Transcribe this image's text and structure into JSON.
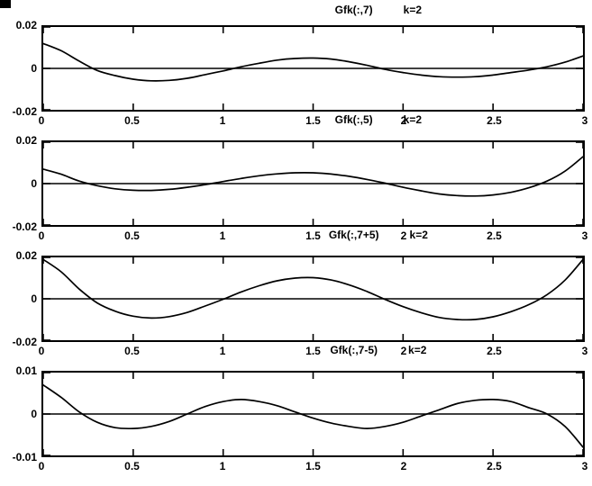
{
  "figure": {
    "background": "#ffffff",
    "line_color": "#000000",
    "text_color": "#000000"
  },
  "chart_data": [
    {
      "type": "line",
      "title": "Gfk(:,7)",
      "annotation": "k=2",
      "xlim": [
        0,
        3
      ],
      "ylim": [
        -0.02,
        0.02
      ],
      "grid": false,
      "legend": null,
      "zero_line": true,
      "xticks": [
        0,
        0.5,
        1,
        1.5,
        2,
        2.5,
        3
      ],
      "xtick_labels": [
        "0",
        "0.5",
        "1",
        "1.5",
        "2",
        "2.5",
        "3"
      ],
      "yticks": [
        -0.02,
        0,
        0.02
      ],
      "ytick_labels": [
        "-0.02",
        "0",
        "0.02"
      ],
      "x": [
        0,
        0.1,
        0.2,
        0.3,
        0.4,
        0.5,
        0.6,
        0.7,
        0.8,
        0.9,
        1,
        1.1,
        1.2,
        1.3,
        1.4,
        1.5,
        1.6,
        1.7,
        1.8,
        1.9,
        2,
        2.1,
        2.2,
        2.3,
        2.4,
        2.5,
        2.6,
        2.7,
        2.8,
        2.9,
        3
      ],
      "y": [
        0.012,
        0.0085,
        0.0035,
        -0.001,
        -0.0035,
        -0.0052,
        -0.006,
        -0.0058,
        -0.0048,
        -0.003,
        -0.0012,
        0.0008,
        0.0025,
        0.004,
        0.0048,
        0.005,
        0.0045,
        0.0032,
        0.0015,
        -0.0005,
        -0.002,
        -0.0032,
        -0.004,
        -0.0042,
        -0.004,
        -0.0032,
        -0.002,
        -0.0008,
        0.0008,
        0.003,
        0.006
      ]
    },
    {
      "type": "line",
      "title": "Gfk(:,5)",
      "annotation": "k=2",
      "xlim": [
        0,
        3
      ],
      "ylim": [
        -0.02,
        0.02
      ],
      "grid": false,
      "legend": null,
      "zero_line": true,
      "xticks": [
        0,
        0.5,
        1,
        1.5,
        2,
        2.5,
        3
      ],
      "xtick_labels": [
        "0",
        "0.5",
        "1",
        "1.5",
        "2",
        "2.5",
        "3"
      ],
      "yticks": [
        -0.02,
        0,
        0.02
      ],
      "ytick_labels": [
        "-0.02",
        "0",
        "0.02"
      ],
      "x": [
        0,
        0.1,
        0.2,
        0.3,
        0.4,
        0.5,
        0.6,
        0.7,
        0.8,
        0.9,
        1,
        1.1,
        1.2,
        1.3,
        1.4,
        1.5,
        1.6,
        1.7,
        1.8,
        1.9,
        2,
        2.1,
        2.2,
        2.3,
        2.4,
        2.5,
        2.6,
        2.7,
        2.8,
        2.9,
        3
      ],
      "y": [
        0.007,
        0.0045,
        0.0012,
        -0.001,
        -0.0025,
        -0.0032,
        -0.0033,
        -0.0028,
        -0.0018,
        -0.0005,
        0.001,
        0.0025,
        0.0038,
        0.0047,
        0.0052,
        0.0052,
        0.0046,
        0.0035,
        0.002,
        0.0002,
        -0.0018,
        -0.0035,
        -0.005,
        -0.0058,
        -0.006,
        -0.0055,
        -0.0042,
        -0.002,
        0.0012,
        0.006,
        0.013
      ]
    },
    {
      "type": "line",
      "title": "Gfk(:,7+5)",
      "annotation": "k=2",
      "xlim": [
        0,
        3
      ],
      "ylim": [
        -0.02,
        0.02
      ],
      "grid": false,
      "legend": null,
      "zero_line": true,
      "xticks": [
        0,
        0.5,
        1,
        1.5,
        2,
        2.5,
        3
      ],
      "xtick_labels": [
        "0",
        "0.5",
        "1",
        "1.5",
        "2",
        "2.5",
        "3"
      ],
      "yticks": [
        -0.02,
        0,
        0.02
      ],
      "ytick_labels": [
        "-0.02",
        "0",
        "0.02"
      ],
      "x": [
        0,
        0.1,
        0.2,
        0.3,
        0.4,
        0.5,
        0.6,
        0.7,
        0.8,
        0.9,
        1,
        1.1,
        1.2,
        1.3,
        1.4,
        1.5,
        1.6,
        1.7,
        1.8,
        1.9,
        2,
        2.1,
        2.2,
        2.3,
        2.4,
        2.5,
        2.6,
        2.7,
        2.8,
        2.9,
        3
      ],
      "y": [
        0.019,
        0.013,
        0.0047,
        -0.002,
        -0.006,
        -0.0084,
        -0.0093,
        -0.0086,
        -0.0066,
        -0.0035,
        -0.0002,
        0.0033,
        0.0063,
        0.0087,
        0.01,
        0.0102,
        0.0091,
        0.0067,
        0.0035,
        -0.0003,
        -0.0038,
        -0.0067,
        -0.009,
        -0.01,
        -0.01,
        -0.0087,
        -0.0062,
        -0.0028,
        0.002,
        0.009,
        0.019
      ]
    },
    {
      "type": "line",
      "title": "Gfk(:,7-5)",
      "annotation": "k=2",
      "xlim": [
        0,
        3
      ],
      "ylim": [
        -0.01,
        0.01
      ],
      "grid": false,
      "legend": null,
      "zero_line": true,
      "xticks": [
        0,
        0.5,
        1,
        1.5,
        2,
        2.5,
        3
      ],
      "xtick_labels": [
        "0",
        "0.5",
        "1",
        "1.5",
        "2",
        "2.5",
        "3"
      ],
      "yticks": [
        -0.01,
        0,
        0.01
      ],
      "ytick_labels": [
        "-0.01",
        "0",
        "0.01"
      ],
      "x": [
        0,
        0.1,
        0.2,
        0.3,
        0.4,
        0.5,
        0.6,
        0.7,
        0.8,
        0.9,
        1,
        1.1,
        1.2,
        1.3,
        1.4,
        1.5,
        1.6,
        1.7,
        1.8,
        1.9,
        2,
        2.1,
        2.2,
        2.3,
        2.4,
        2.5,
        2.6,
        2.7,
        2.8,
        2.9,
        3
      ],
      "y": [
        0.007,
        0.004,
        0.0005,
        -0.002,
        -0.0033,
        -0.0035,
        -0.003,
        -0.0018,
        0,
        0.0018,
        0.003,
        0.0035,
        0.003,
        0.002,
        0.0005,
        -0.001,
        -0.0022,
        -0.003,
        -0.0035,
        -0.003,
        -0.002,
        -0.0005,
        0.001,
        0.0025,
        0.0033,
        0.0035,
        0.003,
        0.0015,
        0,
        -0.003,
        -0.008
      ]
    }
  ]
}
